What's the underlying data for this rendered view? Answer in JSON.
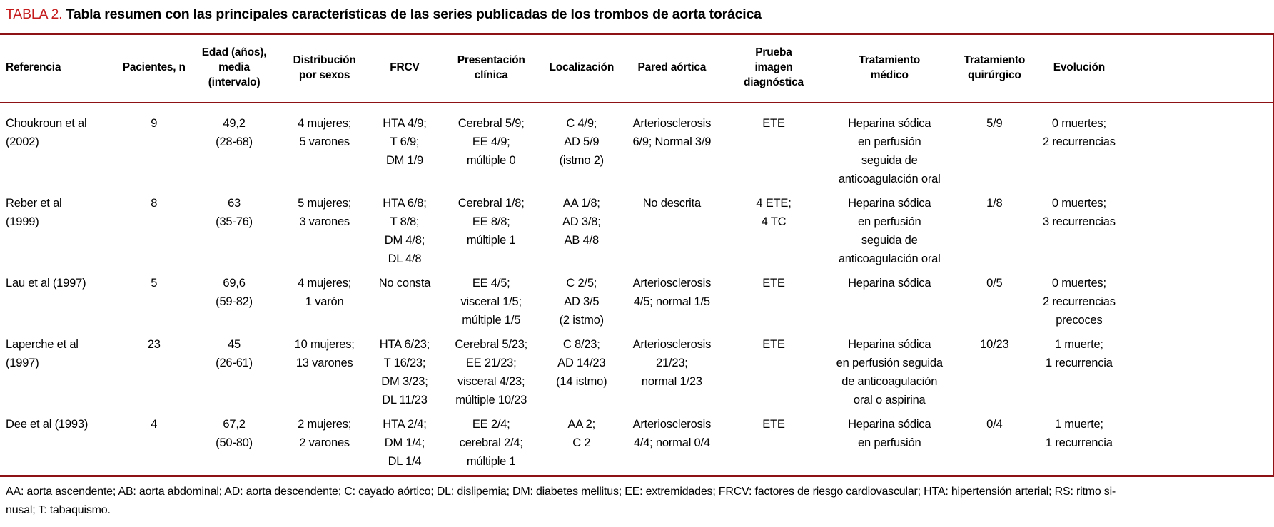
{
  "title": {
    "tag": "TABLA 2.",
    "text": "Tabla resumen con las principales características de las series publicadas de los trombos de aorta torácica"
  },
  "colors": {
    "tag_red": "#c41a1b",
    "rule_red": "#8c1215"
  },
  "table": {
    "columns": [
      "Referencia",
      "Pacientes, n",
      "Edad (años),\nmedia\n(intervalo)",
      "Distribución\npor sexos",
      "FRCV",
      "Presentación\nclínica",
      "Localización",
      "Pared aórtica",
      "Prueba\nimagen\ndiagnóstica",
      "Tratamiento\nmédico",
      "Tratamiento\nquirúrgico",
      "Evolución"
    ],
    "rows": [
      [
        "Choukroun et al\n(2002)",
        "9",
        "49,2\n(28-68)",
        "4 mujeres;\n5 varones",
        "HTA 4/9;\nT 6/9;\nDM 1/9",
        "Cerebral 5/9;\nEE 4/9;\nmúltiple 0",
        "C 4/9;\nAD 5/9\n(istmo 2)",
        "Arteriosclerosis\n6/9; Normal 3/9",
        "ETE",
        "Heparina sódica\nen perfusión\nseguida de\nanticoagulación oral",
        "5/9",
        "0 muertes;\n2 recurrencias"
      ],
      [
        "Reber et al\n(1999)",
        "8",
        "63\n(35-76)",
        "5 mujeres;\n3 varones",
        "HTA 6/8;\nT 8/8;\nDM 4/8;\nDL 4/8",
        "Cerebral 1/8;\nEE 8/8;\nmúltiple 1",
        "AA 1/8;\nAD 3/8;\nAB 4/8",
        "No descrita",
        "4 ETE;\n4 TC",
        "Heparina sódica\nen perfusión\nseguida de\nanticoagulación oral",
        "1/8",
        "0 muertes;\n3 recurrencias"
      ],
      [
        "Lau et al (1997)",
        "5",
        "69,6\n(59-82)",
        "4 mujeres;\n1 varón",
        "No consta",
        "EE 4/5;\nvisceral 1/5;\nmúltiple 1/5",
        "C 2/5;\nAD 3/5\n(2 istmo)",
        "Arteriosclerosis\n4/5; normal 1/5",
        "ETE",
        "Heparina sódica",
        "0/5",
        "0 muertes;\n2 recurrencias\nprecoces"
      ],
      [
        "Laperche et al\n(1997)",
        "23",
        "45\n(26-61)",
        "10 mujeres;\n13 varones",
        "HTA 6/23;\nT 16/23;\nDM 3/23;\nDL 11/23",
        "Cerebral 5/23;\nEE 21/23;\nvisceral 4/23;\nmúltiple 10/23",
        "C 8/23;\nAD 14/23\n(14 istmo)",
        "Arteriosclerosis\n21/23;\nnormal 1/23",
        "ETE",
        "Heparina sódica\nen perfusión seguida\nde anticoagulación\noral o aspirina",
        "10/23",
        "1 muerte;\n1 recurrencia"
      ],
      [
        "Dee et al (1993)",
        "4",
        "67,2\n(50-80)",
        "2 mujeres;\n2 varones",
        "HTA 2/4;\nDM 1/4;\nDL 1/4",
        "EE 2/4;\ncerebral 2/4;\nmúltiple 1",
        "AA 2;\nC 2",
        "Arteriosclerosis\n4/4; normal 0/4",
        "ETE",
        "Heparina sódica\nen perfusión",
        "0/4",
        "1 muerte;\n1 recurrencia"
      ]
    ]
  },
  "footnote": {
    "line1": "AA: aorta ascendente; AB: aorta abdominal; AD: aorta descendente; C: cayado aórtico; DL: dislipemia; DM: diabetes mellitus; EE: extremidades; FRCV: factores de riesgo cardiovascular; HTA: hipertensión arterial; RS: ritmo si-",
    "line2": "nusal; T: tabaquismo."
  }
}
